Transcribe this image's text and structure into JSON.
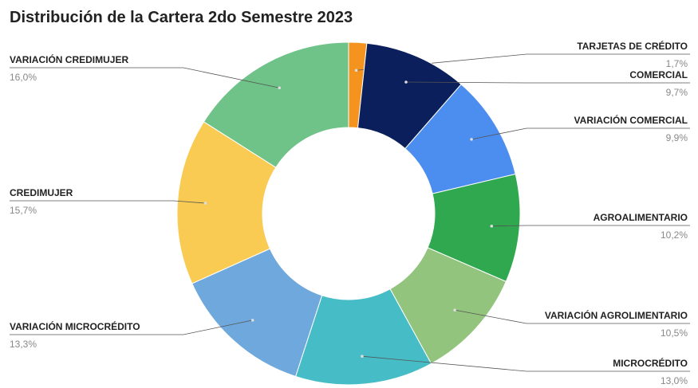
{
  "chart_data": {
    "type": "donut",
    "title": "Distribución de la Cartera 2do Semestre 2023",
    "categories": [
      "TARJETAS DE CRÉDITO",
      "COMERCIAL",
      "VARIACIÓN COMERCIAL",
      "AGROALIMENTARIO",
      "VARIACIÓN AGROLIMENTARIO",
      "MICROCRÉDITO",
      "VARIACIÓN MICROCRÉDITO",
      "CREDIMUJER",
      "VARIACIÓN CREDIMUJER"
    ],
    "values": [
      1.7,
      9.7,
      9.9,
      10.2,
      10.5,
      13.0,
      13.3,
      15.7,
      16.0
    ],
    "value_labels": [
      "1,7%",
      "9,7%",
      "9,9%",
      "10,2%",
      "10,5%",
      "13,0%",
      "13,3%",
      "15,7%",
      "16,0%"
    ],
    "colors": [
      "#f4931e",
      "#0b1f5c",
      "#4c8df0",
      "#2fa84f",
      "#93c47d",
      "#46bdc6",
      "#6fa8dc",
      "#f9cb52",
      "#6fc388"
    ]
  }
}
